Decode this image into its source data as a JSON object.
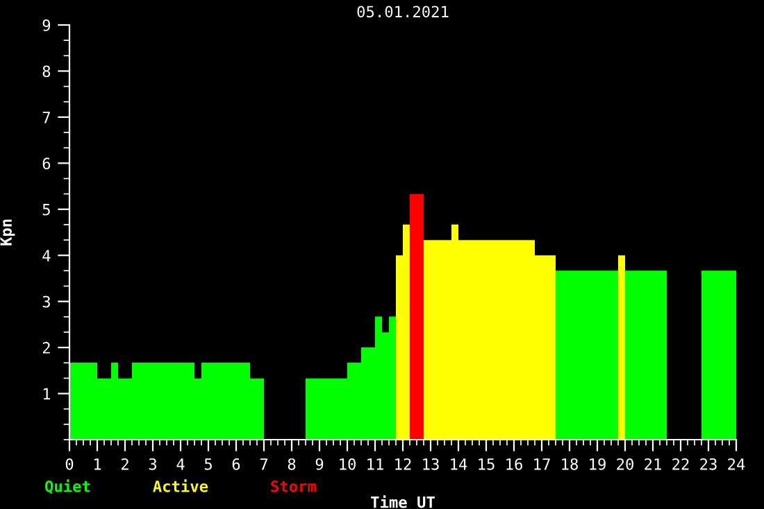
{
  "chart_data": {
    "type": "histogram",
    "title": "05.01.2021",
    "xlabel": "Time UT",
    "ylabel": "Kpn",
    "xlim": [
      0,
      24
    ],
    "xticks": [
      0,
      1,
      2,
      3,
      4,
      5,
      6,
      7,
      8,
      9,
      10,
      11,
      12,
      13,
      14,
      15,
      16,
      17,
      18,
      19,
      20,
      21,
      22,
      23,
      24
    ],
    "ylim": [
      0,
      9
    ],
    "yticks": [
      1,
      2,
      3,
      4,
      5,
      6,
      7,
      8,
      9
    ],
    "grid": false,
    "legend": "bottom",
    "bins": [
      0,
      1,
      1.5,
      1.75,
      2.25,
      4.5,
      4.75,
      6.5,
      7,
      8.5,
      10,
      10.5,
      11,
      11.25,
      11.5,
      11.75,
      12,
      12.25,
      12.75,
      13.75,
      14,
      16.75,
      17.5,
      19.75,
      20,
      21.5,
      22.75,
      24
    ],
    "series": [
      {
        "name": "Quiet",
        "color": "#00ff00",
        "values": [
          1.67,
          1.33,
          1.67,
          1.33,
          1.67,
          1.33,
          1.67,
          1.33,
          null,
          1.33,
          1.67,
          2,
          2.67,
          2.33,
          2.67,
          null,
          null,
          null,
          null,
          null,
          null,
          null,
          3.67,
          null,
          3.67,
          null,
          3.67
        ]
      },
      {
        "name": "Active",
        "color": "#ffff00",
        "values": [
          null,
          null,
          null,
          null,
          null,
          null,
          null,
          null,
          null,
          null,
          null,
          null,
          null,
          null,
          null,
          4,
          4.67,
          null,
          4.33,
          4.67,
          4.33,
          4,
          null,
          4,
          null,
          null,
          null
        ]
      },
      {
        "name": "Storm",
        "color": "#ff0000",
        "values": [
          null,
          null,
          null,
          null,
          null,
          null,
          null,
          null,
          null,
          null,
          null,
          null,
          null,
          null,
          null,
          null,
          null,
          5.33,
          null,
          null,
          null,
          null,
          null,
          null,
          null,
          null,
          null
        ]
      }
    ]
  }
}
